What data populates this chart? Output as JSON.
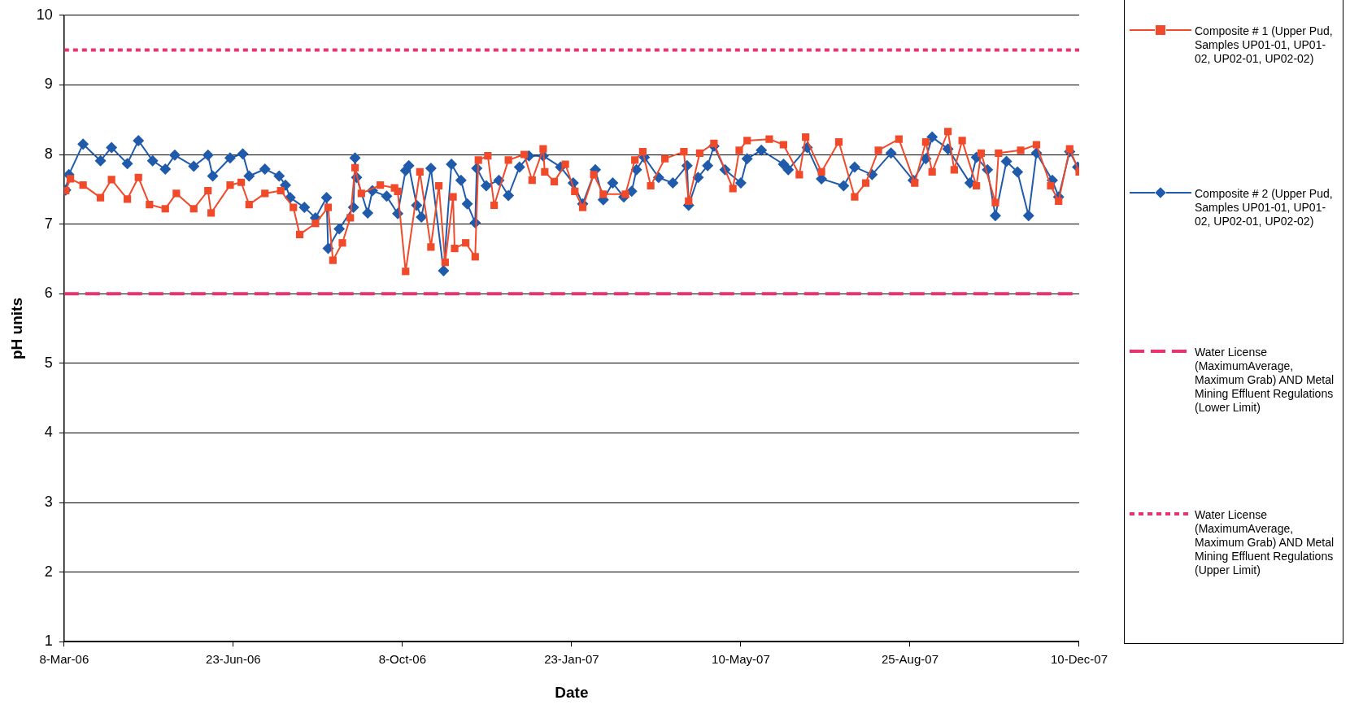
{
  "chart_data": {
    "type": "line",
    "xlabel": "Date",
    "ylabel": "pH units",
    "ylim": [
      1,
      10
    ],
    "yticks": [
      1,
      2,
      3,
      4,
      5,
      6,
      7,
      8,
      9,
      10
    ],
    "xlim": [
      "2006-03-08",
      "2007-12-10"
    ],
    "xticks": [
      {
        "value": "2006-03-08",
        "label": "8-Mar-06"
      },
      {
        "value": "2006-06-23",
        "label": "23-Jun-06"
      },
      {
        "value": "2006-10-08",
        "label": "8-Oct-06"
      },
      {
        "value": "2007-01-23",
        "label": "23-Jan-07"
      },
      {
        "value": "2007-05-10",
        "label": "10-May-07"
      },
      {
        "value": "2007-08-25",
        "label": "25-Aug-07"
      },
      {
        "value": "2007-12-10",
        "label": "10-Dec-07"
      }
    ],
    "grid": "y",
    "legend": "right",
    "series": [
      {
        "name": "Composite # 1 (Upper Pud, Samples UP01-01, UP01-02, UP02-01, UP02-02)",
        "color": "#f04a2a",
        "marker": "square",
        "line_style": "solid",
        "x": [
          "2006-03-09",
          "2006-03-12",
          "2006-03-20",
          "2006-03-31",
          "2006-04-07",
          "2006-04-17",
          "2006-04-24",
          "2006-05-01",
          "2006-05-11",
          "2006-05-18",
          "2006-05-29",
          "2006-06-07",
          "2006-06-09",
          "2006-06-21",
          "2006-06-28",
          "2006-07-03",
          "2006-07-13",
          "2006-07-23",
          "2006-07-31",
          "2006-08-04",
          "2006-08-14",
          "2006-08-22",
          "2006-08-25",
          "2006-08-31",
          "2006-09-05",
          "2006-09-08",
          "2006-09-12",
          "2006-09-24",
          "2006-10-03",
          "2006-10-05",
          "2006-10-10",
          "2006-10-19",
          "2006-10-26",
          "2006-10-31",
          "2006-11-04",
          "2006-11-09",
          "2006-11-10",
          "2006-11-17",
          "2006-11-23",
          "2006-11-25",
          "2006-12-01",
          "2006-12-05",
          "2006-12-14",
          "2006-12-24",
          "2006-12-29",
          "2007-01-05",
          "2007-01-06",
          "2007-01-12",
          "2007-01-19",
          "2007-01-25",
          "2007-01-30",
          "2007-02-06",
          "2007-02-12",
          "2007-02-26",
          "2007-03-04",
          "2007-03-09",
          "2007-03-14",
          "2007-03-23",
          "2007-04-04",
          "2007-04-07",
          "2007-04-14",
          "2007-04-23",
          "2007-05-05",
          "2007-05-09",
          "2007-05-14",
          "2007-05-28",
          "2007-06-06",
          "2007-06-16",
          "2007-06-20",
          "2007-06-30",
          "2007-07-11",
          "2007-07-21",
          "2007-07-28",
          "2007-08-05",
          "2007-08-18",
          "2007-08-28",
          "2007-09-04",
          "2007-09-08",
          "2007-09-18",
          "2007-09-22",
          "2007-09-27",
          "2007-10-06",
          "2007-10-09",
          "2007-10-18",
          "2007-10-20",
          "2007-11-03",
          "2007-11-13",
          "2007-11-22",
          "2007-11-27",
          "2007-12-04",
          "2007-12-10"
        ],
        "values": [
          7.48,
          7.65,
          7.56,
          7.38,
          7.64,
          7.36,
          7.67,
          7.28,
          7.22,
          7.44,
          7.22,
          7.48,
          7.16,
          7.56,
          7.6,
          7.28,
          7.44,
          7.48,
          7.24,
          6.85,
          7.01,
          7.24,
          6.48,
          6.73,
          7.09,
          7.81,
          7.44,
          7.56,
          7.52,
          7.47,
          6.32,
          7.75,
          6.67,
          7.55,
          6.45,
          7.39,
          6.65,
          6.73,
          6.53,
          7.92,
          7.98,
          7.27,
          7.92,
          8.0,
          7.63,
          8.08,
          7.75,
          7.61,
          7.86,
          7.47,
          7.24,
          7.71,
          7.43,
          7.43,
          7.92,
          8.04,
          7.55,
          7.94,
          8.04,
          7.33,
          8.02,
          8.16,
          7.51,
          8.06,
          8.2,
          8.22,
          8.14,
          7.71,
          8.25,
          7.75,
          8.18,
          7.39,
          7.59,
          8.06,
          8.22,
          7.59,
          8.18,
          7.75,
          8.33,
          7.78,
          8.2,
          7.55,
          8.02,
          7.31,
          8.02,
          8.06,
          8.14,
          7.55,
          7.33,
          8.08,
          7.75
        ]
      },
      {
        "name": "Composite # 2 (Upper Pud, Samples UP01-01, UP01-02, UP02-01, UP02-02)",
        "color": "#1f5aab",
        "marker": "diamond",
        "line_style": "solid",
        "x": [
          "2006-03-09",
          "2006-03-11",
          "2006-03-20",
          "2006-03-31",
          "2006-04-07",
          "2006-04-17",
          "2006-04-24",
          "2006-05-03",
          "2006-05-11",
          "2006-05-17",
          "2006-05-29",
          "2006-06-07",
          "2006-06-10",
          "2006-06-21",
          "2006-06-29",
          "2006-07-03",
          "2006-07-13",
          "2006-07-22",
          "2006-07-26",
          "2006-07-29",
          "2006-08-07",
          "2006-08-14",
          "2006-08-21",
          "2006-08-22",
          "2006-08-29",
          "2006-09-07",
          "2006-09-08",
          "2006-09-09",
          "2006-09-16",
          "2006-09-19",
          "2006-09-28",
          "2006-10-05",
          "2006-10-10",
          "2006-10-12",
          "2006-10-17",
          "2006-10-20",
          "2006-10-26",
          "2006-11-03",
          "2006-11-08",
          "2006-11-14",
          "2006-11-18",
          "2006-11-23",
          "2006-11-24",
          "2006-11-30",
          "2006-12-08",
          "2006-12-14",
          "2006-12-21",
          "2006-12-27",
          "2007-01-05",
          "2007-01-16",
          "2007-01-24",
          "2007-01-30",
          "2007-02-07",
          "2007-02-12",
          "2007-02-18",
          "2007-02-25",
          "2007-03-02",
          "2007-03-05",
          "2007-03-10",
          "2007-03-19",
          "2007-03-28",
          "2007-04-06",
          "2007-04-07",
          "2007-04-13",
          "2007-04-19",
          "2007-04-23",
          "2007-04-30",
          "2007-05-10",
          "2007-05-14",
          "2007-05-23",
          "2007-06-06",
          "2007-06-09",
          "2007-06-21",
          "2007-06-30",
          "2007-07-14",
          "2007-07-21",
          "2007-08-01",
          "2007-08-13",
          "2007-08-27",
          "2007-09-04",
          "2007-09-08",
          "2007-09-18",
          "2007-10-02",
          "2007-10-06",
          "2007-10-13",
          "2007-10-18",
          "2007-10-25",
          "2007-11-01",
          "2007-11-08",
          "2007-11-13",
          "2007-11-23",
          "2007-11-27",
          "2007-12-04",
          "2007-12-09"
        ],
        "values": [
          7.49,
          7.71,
          8.15,
          7.91,
          8.1,
          7.87,
          8.2,
          7.91,
          7.79,
          7.99,
          7.83,
          7.99,
          7.69,
          7.95,
          8.01,
          7.69,
          7.79,
          7.69,
          7.56,
          7.38,
          7.24,
          7.09,
          7.38,
          6.65,
          6.93,
          7.24,
          7.95,
          7.67,
          7.16,
          7.48,
          7.4,
          7.15,
          7.77,
          7.84,
          7.27,
          7.1,
          7.8,
          6.33,
          7.86,
          7.63,
          7.29,
          7.02,
          7.8,
          7.55,
          7.63,
          7.41,
          7.82,
          7.98,
          7.98,
          7.82,
          7.59,
          7.29,
          7.78,
          7.35,
          7.59,
          7.39,
          7.47,
          7.78,
          7.96,
          7.67,
          7.59,
          7.84,
          7.27,
          7.67,
          7.84,
          8.12,
          7.78,
          7.59,
          7.94,
          8.06,
          7.86,
          7.78,
          8.1,
          7.65,
          7.55,
          7.82,
          7.71,
          8.02,
          7.63,
          7.94,
          8.25,
          8.08,
          7.59,
          7.96,
          7.78,
          7.12,
          7.9,
          7.75,
          7.12,
          8.02,
          7.63,
          7.39,
          8.04,
          7.82
        ]
      },
      {
        "name": "Water License (MaximumAverage, Maximum Grab) AND Metal Mining Effluent Regulations (Lower Limit)",
        "color": "#e8336e",
        "marker": "none",
        "line_style": "dashed",
        "x": [
          "2006-03-08",
          "2007-12-10"
        ],
        "values": [
          6,
          6
        ]
      },
      {
        "name": "Water License (MaximumAverage, Maximum Grab) AND Metal Mining Effluent Regulations (Upper Limit)",
        "color": "#e8336e",
        "marker": "none",
        "line_style": "dotted",
        "x": [
          "2006-03-08",
          "2007-12-10"
        ],
        "values": [
          9.5,
          9.5
        ]
      }
    ]
  }
}
